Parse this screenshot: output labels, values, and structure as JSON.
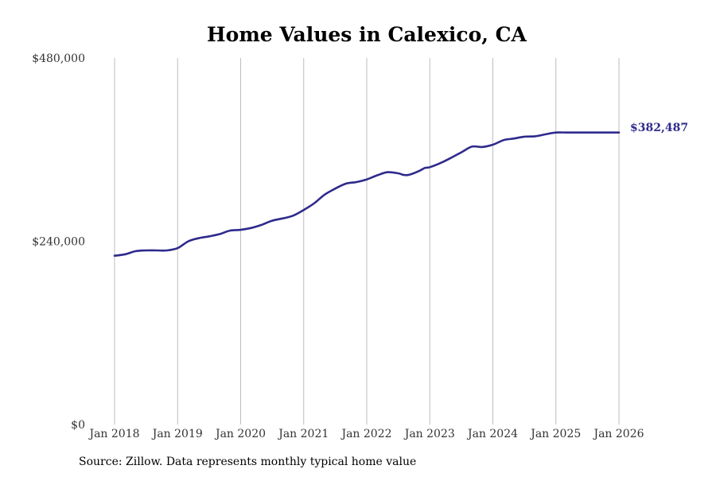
{
  "colors": {
    "line": "#2e2a8c",
    "grid": "#bdbdbd",
    "title": "#000000"
  },
  "source_note": "Source: Zillow. Data represents monthly typical home value",
  "chart_data": {
    "type": "line",
    "title": "Home Values in Calexico, CA",
    "xlabel": "",
    "ylabel": "",
    "ylim": [
      0,
      480000
    ],
    "yticks": [
      {
        "value": 0,
        "label": "$0"
      },
      {
        "value": 240000,
        "label": "$240,000"
      },
      {
        "value": 480000,
        "label": "$480,000"
      }
    ],
    "xlim": [
      2018.0,
      2026.0
    ],
    "xticks": [
      {
        "value": 2018,
        "label": "Jan 2018"
      },
      {
        "value": 2019,
        "label": "Jan 2019"
      },
      {
        "value": 2020,
        "label": "Jan 2020"
      },
      {
        "value": 2021,
        "label": "Jan 2021"
      },
      {
        "value": 2022,
        "label": "Jan 2022"
      },
      {
        "value": 2023,
        "label": "Jan 2023"
      },
      {
        "value": 2024,
        "label": "Jan 2024"
      },
      {
        "value": 2025,
        "label": "Jan 2025"
      },
      {
        "value": 2026,
        "label": "Jan 2026"
      }
    ],
    "grid": "vertical",
    "end_label": "$382,487",
    "series": [
      {
        "name": "Typical home value",
        "x": [
          2018.0,
          2018.17,
          2018.33,
          2018.5,
          2018.67,
          2018.83,
          2019.0,
          2019.17,
          2019.33,
          2019.5,
          2019.67,
          2019.83,
          2020.0,
          2020.17,
          2020.33,
          2020.5,
          2020.67,
          2020.83,
          2021.0,
          2021.17,
          2021.33,
          2021.5,
          2021.67,
          2021.83,
          2022.0,
          2022.17,
          2022.33,
          2022.5,
          2022.58,
          2022.67,
          2022.83,
          2022.92,
          2023.0,
          2023.17,
          2023.33,
          2023.5,
          2023.67,
          2023.83,
          2024.0,
          2024.17,
          2024.33,
          2024.5,
          2024.67,
          2024.83,
          2025.0,
          2025.17,
          2025.33,
          2025.5,
          2025.67,
          2025.83,
          2026.0
        ],
        "values": [
          221000,
          223000,
          227000,
          228000,
          228000,
          228000,
          231000,
          240000,
          244000,
          246500,
          249500,
          254000,
          255000,
          257500,
          261500,
          267000,
          270000,
          273500,
          281000,
          290000,
          301000,
          309000,
          315500,
          317500,
          321000,
          326500,
          330500,
          329000,
          327000,
          327000,
          332000,
          336000,
          337000,
          342500,
          349000,
          356500,
          364000,
          363500,
          366500,
          372500,
          374500,
          377000,
          377500,
          380000,
          382487,
          382487,
          382487,
          382487,
          382487,
          382487,
          382487
        ]
      }
    ]
  }
}
